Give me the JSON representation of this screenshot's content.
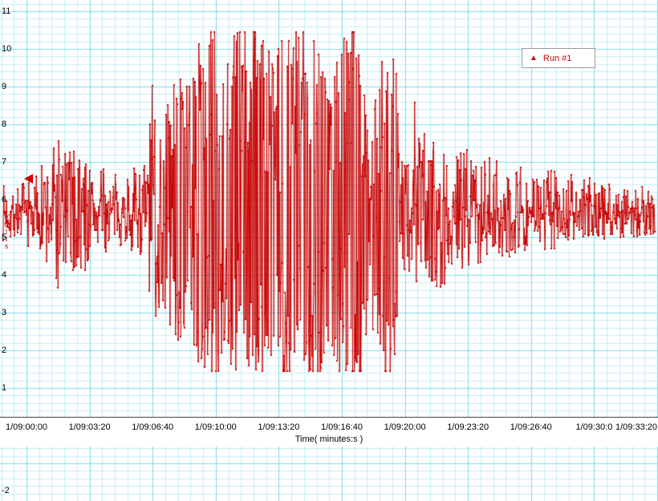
{
  "legend": {
    "marker_glyph": "▲",
    "label": "Run #1",
    "color": "#cc0000"
  },
  "y_axis": {
    "title": "Volts",
    "tick_labels": [
      "11",
      "10",
      "9",
      "8",
      "7",
      "6",
      "5",
      "4",
      "3",
      "2",
      "1"
    ],
    "below_band_label": "-2"
  },
  "x_axis": {
    "title": "Time( minutes:s )",
    "tick_labels": [
      "1/09:00:00",
      "1/09:03:20",
      "1/09:06:40",
      "1/09:10:00",
      "1/09:13:20",
      "1/09:16:40",
      "1/09:20:00",
      "1/09:23:20",
      "1/09:26:40",
      "1/09:30:0",
      "1/09:33:20"
    ]
  },
  "chart_data": {
    "type": "line",
    "title": "",
    "xlabel": "Time( minutes:s )",
    "ylabel": "Volts",
    "series": [
      {
        "name": "Run #1",
        "color": "#c80000"
      }
    ],
    "x_tick_labels": [
      "1/09:00:00",
      "1/09:03:20",
      "1/09:06:40",
      "1/09:10:00",
      "1/09:13:20",
      "1/09:16:40",
      "1/09:20:00",
      "1/09:23:20",
      "1/09:26:40",
      "1/09:30:0",
      "1/09:33:20"
    ],
    "y_tick_labels": [
      "11",
      "10",
      "9",
      "8",
      "7",
      "6",
      "5",
      "4",
      "3",
      "2",
      "1",
      "-2"
    ],
    "ylim": [
      -2,
      11
    ],
    "grid_on": true,
    "legend_position": "top-right",
    "baseline": 5.65,
    "clip_low": 1.45,
    "clip_high": 10.45,
    "n_points": 1200,
    "seed": 7,
    "trace_color": "#c80000",
    "grid": {
      "minor_color": "#c6eef3",
      "major_color": "#7cdbe8",
      "minor_step_x": 15.72,
      "major_step_x": 78.6,
      "minor_step_y": 9.4,
      "major_step_y": 47,
      "major_x_offset": 33,
      "major_y_offset": 14
    },
    "envelope": [
      [
        0,
        4.9,
        6.4
      ],
      [
        30,
        4.8,
        6.5
      ],
      [
        48,
        4.6,
        6.8
      ],
      [
        60,
        4.0,
        7.2
      ],
      [
        72,
        3.4,
        8.0
      ],
      [
        84,
        4.1,
        7.2
      ],
      [
        100,
        3.7,
        7.5
      ],
      [
        114,
        4.4,
        6.9
      ],
      [
        132,
        4.6,
        6.8
      ],
      [
        152,
        4.8,
        6.6
      ],
      [
        168,
        4.6,
        6.9
      ],
      [
        182,
        4.4,
        7.1
      ],
      [
        190,
        2.2,
        9.2
      ],
      [
        200,
        3.0,
        8.5
      ],
      [
        210,
        2.5,
        8.9
      ],
      [
        222,
        1.9,
        9.5
      ],
      [
        236,
        2.6,
        9.0
      ],
      [
        248,
        1.6,
        10.2
      ],
      [
        258,
        1.0,
        10.8
      ],
      [
        270,
        0.9,
        10.9
      ],
      [
        282,
        1.9,
        10.0
      ],
      [
        294,
        0.9,
        10.9
      ],
      [
        315,
        0.9,
        10.9
      ],
      [
        330,
        1.2,
        10.6
      ],
      [
        342,
        2.1,
        9.4
      ],
      [
        354,
        0.9,
        10.9
      ],
      [
        378,
        0.9,
        10.9
      ],
      [
        400,
        0.9,
        10.9
      ],
      [
        415,
        1.9,
        9.7
      ],
      [
        430,
        0.9,
        10.9
      ],
      [
        448,
        1.0,
        10.7
      ],
      [
        458,
        2.7,
        8.3
      ],
      [
        468,
        2.2,
        8.9
      ],
      [
        480,
        1.1,
        10.6
      ],
      [
        490,
        1.4,
        10.3
      ],
      [
        498,
        3.0,
        8.4
      ],
      [
        508,
        3.9,
        7.4
      ],
      [
        518,
        3.5,
        7.8
      ],
      [
        528,
        3.2,
        8.2
      ],
      [
        538,
        3.7,
        7.5
      ],
      [
        550,
        3.4,
        7.8
      ],
      [
        564,
        4.1,
        7.1
      ],
      [
        580,
        4.2,
        7.4
      ],
      [
        598,
        4.3,
        7.1
      ],
      [
        614,
        4.4,
        7.2
      ],
      [
        630,
        4.5,
        7.0
      ],
      [
        648,
        4.4,
        7.1
      ],
      [
        666,
        4.6,
        6.9
      ],
      [
        692,
        4.7,
        6.8
      ],
      [
        718,
        4.8,
        6.7
      ],
      [
        745,
        4.9,
        6.5
      ],
      [
        772,
        5.0,
        6.4
      ],
      [
        820,
        5.0,
        6.35
      ]
    ]
  }
}
